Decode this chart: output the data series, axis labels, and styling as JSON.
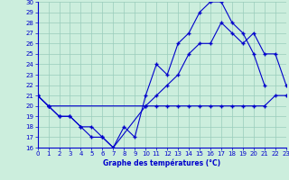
{
  "title": "Graphe des températures (°C)",
  "bg_color": "#cceedd",
  "line_color": "#0000cc",
  "grid_color": "#99ccbb",
  "xmin": 0,
  "xmax": 23,
  "ymin": 16,
  "ymax": 30,
  "series": [
    {
      "x": [
        0,
        1,
        2,
        3,
        4,
        5,
        6,
        7,
        8,
        9,
        10,
        11,
        12,
        13,
        14,
        15,
        16,
        17,
        18,
        19,
        20,
        21
      ],
      "y": [
        21,
        20,
        19,
        19,
        18,
        17,
        17,
        16,
        18,
        17,
        21,
        24,
        23,
        26,
        27,
        29,
        30,
        30,
        28,
        27,
        25,
        22
      ]
    },
    {
      "x": [
        0,
        1,
        2,
        3,
        4,
        5,
        6,
        7,
        10,
        11,
        12,
        13,
        14,
        15,
        16,
        17,
        18,
        19,
        20,
        21,
        22,
        23
      ],
      "y": [
        21,
        20,
        19,
        19,
        18,
        18,
        17,
        16,
        20,
        21,
        22,
        23,
        25,
        26,
        26,
        28,
        27,
        26,
        27,
        25,
        25,
        22
      ]
    },
    {
      "x": [
        0,
        1,
        10,
        11,
        12,
        13,
        14,
        15,
        16,
        17,
        18,
        19,
        20,
        21,
        22,
        23
      ],
      "y": [
        21,
        20,
        20,
        20,
        20,
        20,
        20,
        20,
        20,
        20,
        20,
        20,
        20,
        20,
        21,
        21
      ]
    }
  ]
}
